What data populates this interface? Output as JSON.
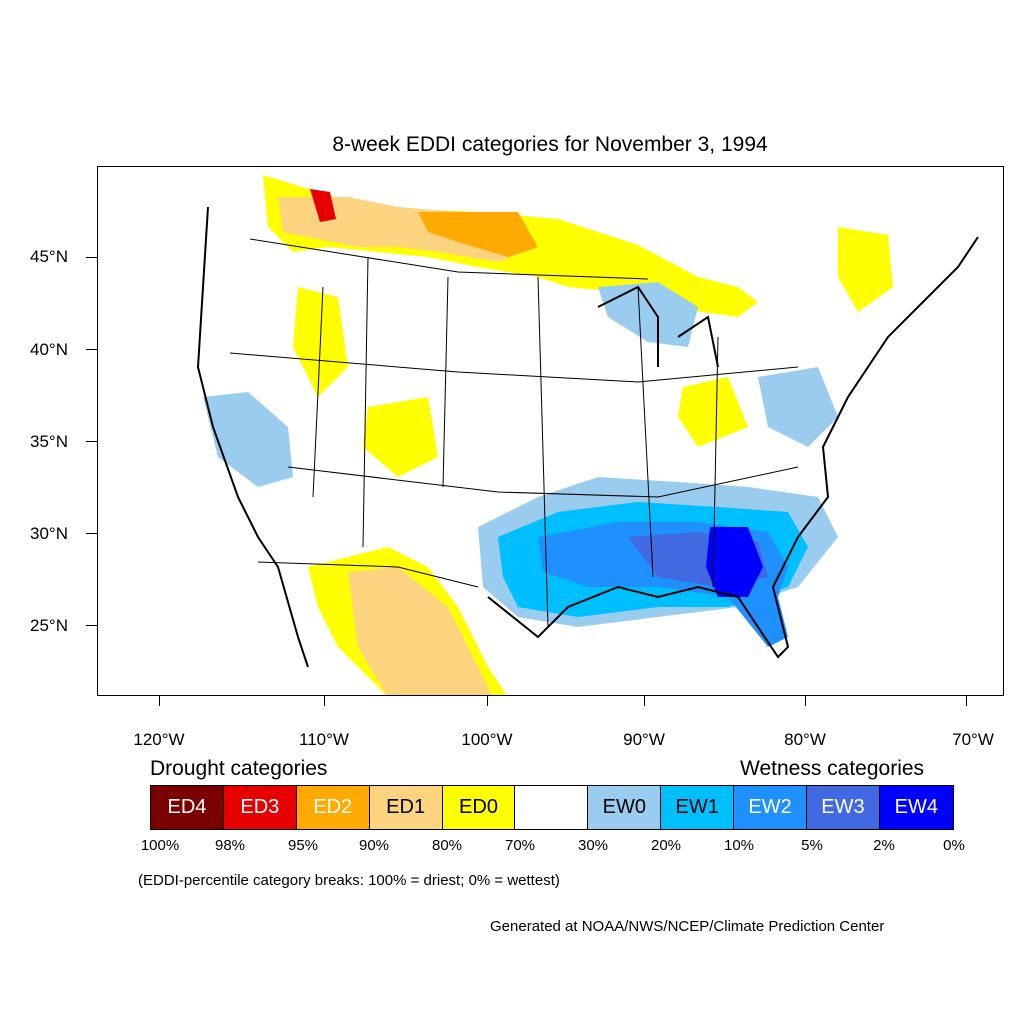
{
  "title": "8-week EDDI categories for November 3, 1994",
  "axes": {
    "lat_labels": [
      "45°N",
      "40°N",
      "35°N",
      "30°N",
      "25°N"
    ],
    "lon_labels": [
      "120°W",
      "110°W",
      "100°W",
      "90°W",
      "80°W",
      "70°W"
    ]
  },
  "legend": {
    "drought_heading": "Drought categories",
    "wetness_heading": "Wetness categories",
    "categories": [
      {
        "label": "ED4",
        "color": "#7a0000",
        "text_color": "#ffffff"
      },
      {
        "label": "ED3",
        "color": "#e60000",
        "text_color": "#ffffff"
      },
      {
        "label": "ED2",
        "color": "#ffaa00",
        "text_color": "#ffffff"
      },
      {
        "label": "ED1",
        "color": "#fcd37f",
        "text_color": "#000000"
      },
      {
        "label": "ED0",
        "color": "#ffff00",
        "text_color": "#000000"
      },
      {
        "label": "",
        "color": "#ffffff",
        "text_color": "#000000"
      },
      {
        "label": "EW0",
        "color": "#99ccee",
        "text_color": "#000000"
      },
      {
        "label": "EW1",
        "color": "#00bfff",
        "text_color": "#000000"
      },
      {
        "label": "EW2",
        "color": "#1e90ff",
        "text_color": "#ffffff"
      },
      {
        "label": "EW3",
        "color": "#4169e1",
        "text_color": "#ffffff"
      },
      {
        "label": "EW4",
        "color": "#0000ff",
        "text_color": "#ffffff"
      }
    ],
    "breaks": [
      "100%",
      "98%",
      "95%",
      "90%",
      "80%",
      "70%",
      "30%",
      "20%",
      "10%",
      "5%",
      "2%",
      "0%"
    ]
  },
  "note": "(EDDI-percentile category breaks: 100% = driest; 0% = wettest)",
  "credit": "Generated at NOAA/NWS/NCEP/Climate Prediction Center"
}
